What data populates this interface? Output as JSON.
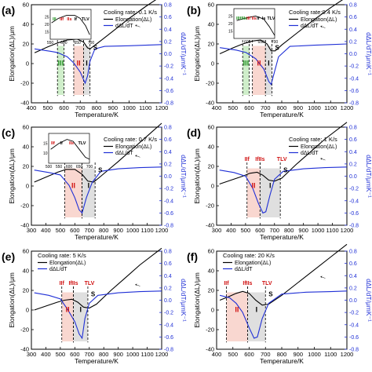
{
  "figure": {
    "ylabel_left": "Elongation(ΔL)/μm",
    "ylabel_right": "dΔL/dT/μmK⁻¹",
    "xlabel": "Temperature/K",
    "arrow_glyph": "→"
  },
  "colors": {
    "elongation": "#000000",
    "derivative": "#1f2fd6",
    "right_axis": "#1f2fd6",
    "zone_green": "#bfe8b8",
    "zone_red": "#f7c9c0",
    "zone_gray": "#d4d4d4",
    "label_red": "#d01010",
    "label_green": "#1f8f1f"
  },
  "chart_data": [
    {
      "panel": "(a)",
      "type": "line",
      "cooling_rate": "Cooling rate: 0.1 K/s",
      "legend": [
        "Elongation(ΔL)",
        "dΔL/dT"
      ],
      "xlim": [
        400,
        1200
      ],
      "xticks": [
        400,
        500,
        600,
        700,
        800,
        900,
        1000,
        1100,
        1200
      ],
      "ylim_left": [
        -40,
        60
      ],
      "yticks_left": [
        -40,
        -20,
        0,
        20,
        40,
        60
      ],
      "ylim_right": [
        -0.8,
        0.8
      ],
      "yticks_right": [
        -0.8,
        -0.6,
        -0.4,
        -0.2,
        0.0,
        0.2,
        0.4,
        0.6,
        0.8
      ],
      "zones": [
        {
          "label": "III",
          "x": [
            560,
            600
          ],
          "color": "green"
        },
        {
          "label": "II",
          "x": [
            660,
            720
          ],
          "color": "red"
        },
        {
          "label": "I",
          "x": [
            720,
            760
          ],
          "color": "gray"
        }
      ],
      "labels": [
        "III",
        "II",
        "I",
        "S"
      ],
      "series": [
        {
          "name": "Elongation(ΔL)",
          "axis": "left",
          "x": [
            420,
            500,
            560,
            620,
            680,
            720,
            745,
            760,
            800,
            900,
            1000,
            1100,
            1200
          ],
          "y": [
            11,
            17,
            21,
            24,
            25,
            22,
            16,
            15,
            20,
            33,
            46,
            58,
            69
          ]
        },
        {
          "name": "dΔL/dT",
          "axis": "right",
          "x": [
            420,
            520,
            560,
            620,
            660,
            700,
            730,
            745,
            760,
            790,
            850,
            1000,
            1100,
            1200
          ],
          "y": [
            0.08,
            0.04,
            0.02,
            -0.05,
            -0.15,
            -0.3,
            -0.48,
            -0.36,
            -0.12,
            0.08,
            0.12,
            0.13,
            0.14,
            0.15
          ]
        }
      ],
      "inset": {
        "xlim": [
          550,
          700
        ],
        "xticks": [
          550,
          600,
          650,
          700
        ],
        "ylim": [
          10,
          30
        ],
        "yticks": [
          15,
          20,
          25
        ],
        "labels": [
          "III",
          "IIf",
          "IIs",
          "If",
          "TLV"
        ],
        "x": [
          555,
          580,
          610,
          640,
          660,
          680,
          695
        ],
        "y": [
          21,
          24,
          26,
          26,
          24,
          19,
          13
        ]
      }
    },
    {
      "panel": "(b)",
      "type": "line",
      "cooling_rate": "Cooling rate:0.4 K/s",
      "legend": [
        "Elongation(ΔL)",
        "dΔL/dT"
      ],
      "xlim": [
        400,
        1200
      ],
      "xticks": [
        400,
        500,
        600,
        700,
        800,
        900,
        1000,
        1100,
        1200
      ],
      "ylim_left": [
        -40,
        60
      ],
      "yticks_left": [
        -40,
        -20,
        0,
        20,
        40,
        60
      ],
      "ylim_right": [
        -0.8,
        0.8
      ],
      "yticks_right": [
        -0.8,
        -0.6,
        -0.4,
        -0.2,
        0.0,
        0.2,
        0.4,
        0.6,
        0.8
      ],
      "zones": [
        {
          "label": "III",
          "x": [
            560,
            600
          ],
          "color": "green"
        },
        {
          "label": "II",
          "x": [
            620,
            700
          ],
          "color": "red"
        },
        {
          "label": "I",
          "x": [
            700,
            740
          ],
          "color": "gray"
        }
      ],
      "labels": [
        "III",
        "II",
        "I",
        "S"
      ],
      "series": [
        {
          "name": "Elongation(ΔL)",
          "axis": "left",
          "x": [
            420,
            500,
            560,
            620,
            670,
            710,
            735,
            760,
            800,
            900,
            1000,
            1100,
            1200
          ],
          "y": [
            10,
            16,
            20,
            23,
            24,
            20,
            13,
            13,
            19,
            32,
            45,
            57,
            68
          ]
        },
        {
          "name": "dΔL/dT",
          "axis": "right",
          "x": [
            420,
            520,
            580,
            640,
            690,
            720,
            735,
            750,
            780,
            850,
            1000,
            1100,
            1200
          ],
          "y": [
            0.1,
            0.06,
            0.02,
            -0.08,
            -0.25,
            -0.45,
            -0.5,
            -0.35,
            -0.05,
            0.12,
            0.14,
            0.15,
            0.16
          ]
        }
      ],
      "inset": {
        "xlim": [
          550,
          700
        ],
        "xticks": [
          600,
          650,
          700
        ],
        "ylim": [
          10,
          30
        ],
        "yticks": [
          15,
          20,
          25
        ],
        "labels": [
          "IIIf",
          "IIIs",
          "IIf",
          "IIs",
          "If",
          "Is",
          "TLV"
        ],
        "x": [
          560,
          600,
          630,
          660,
          680,
          700
        ],
        "y": [
          22,
          24,
          25,
          23,
          18,
          12
        ]
      }
    },
    {
      "panel": "(c)",
      "type": "line",
      "cooling_rate": "Cooling rate: 0.7 K/s",
      "legend": [
        "Elongation(ΔL)",
        "dΔL/dT"
      ],
      "xlim": [
        300,
        1200
      ],
      "xticks": [
        300,
        400,
        500,
        600,
        700,
        800,
        900,
        1000,
        1100,
        1200
      ],
      "ylim_left": [
        -40,
        60
      ],
      "yticks_left": [
        -40,
        -20,
        0,
        20,
        40,
        60
      ],
      "ylim_right": [
        -0.8,
        0.8
      ],
      "yticks_right": [
        -0.8,
        -0.6,
        -0.4,
        -0.2,
        0.0,
        0.2,
        0.4,
        0.6,
        0.8
      ],
      "zones": [
        {
          "label": "II",
          "x": [
            530,
            650
          ],
          "color": "red"
        },
        {
          "label": "I",
          "x": [
            650,
            740
          ],
          "color": "gray"
        }
      ],
      "labels": [
        "II",
        "I",
        "S"
      ],
      "series": [
        {
          "name": "Elongation(ΔL)",
          "axis": "left",
          "x": [
            320,
            400,
            480,
            540,
            600,
            650,
            690,
            730,
            780,
            900,
            1000,
            1100,
            1200
          ],
          "y": [
            4,
            9,
            14,
            17,
            17,
            12,
            5,
            4,
            10,
            25,
            38,
            51,
            64
          ]
        },
        {
          "name": "dΔL/dT",
          "axis": "right",
          "x": [
            320,
            420,
            500,
            560,
            600,
            630,
            650,
            680,
            720,
            780,
            900,
            1050,
            1200
          ],
          "y": [
            0.1,
            0.06,
            0.02,
            -0.15,
            -0.35,
            -0.55,
            -0.6,
            -0.35,
            -0.1,
            0.08,
            0.12,
            0.14,
            0.15
          ]
        }
      ],
      "inset": {
        "xlim": [
          500,
          700
        ],
        "xticks": [
          500,
          550,
          600,
          650,
          700
        ],
        "ylim": [
          5,
          20
        ],
        "yticks": [
          10,
          15
        ],
        "labels": [
          "IIf",
          "If",
          "IIs",
          "TLV"
        ],
        "x": [
          510,
          550,
          590,
          620,
          650,
          680,
          700
        ],
        "y": [
          12,
          15,
          17,
          16,
          12,
          8,
          7
        ]
      }
    },
    {
      "panel": "(d)",
      "type": "line",
      "cooling_rate": "Cooling rate: 1 K/s",
      "legend": [
        "Elongation(ΔL)",
        "dΔL/dT"
      ],
      "xlim": [
        300,
        1200
      ],
      "xticks": [
        300,
        400,
        500,
        600,
        700,
        800,
        900,
        1000,
        1100,
        1200
      ],
      "ylim_left": [
        -40,
        60
      ],
      "yticks_left": [
        -40,
        -20,
        0,
        20,
        40,
        60
      ],
      "ylim_right": [
        -0.8,
        0.8
      ],
      "yticks_right": [
        -0.8,
        -0.6,
        -0.4,
        -0.2,
        0.0,
        0.2,
        0.4,
        0.6,
        0.8
      ],
      "zones": [
        {
          "label": "II",
          "x": [
            510,
            600
          ],
          "color": "red"
        },
        {
          "label": "I",
          "x": [
            600,
            740
          ],
          "color": "gray"
        }
      ],
      "labels": [
        "IIf",
        "IfIIs",
        "TLV",
        "II",
        "I",
        "S"
      ],
      "series": [
        {
          "name": "Elongation(ΔL)",
          "axis": "left",
          "x": [
            320,
            400,
            480,
            530,
            580,
            620,
            660,
            700,
            750,
            850,
            950,
            1050,
            1200
          ],
          "y": [
            2,
            6,
            10,
            13,
            14,
            11,
            6,
            5,
            8,
            22,
            35,
            48,
            65
          ]
        },
        {
          "name": "dΔL/dT",
          "axis": "right",
          "x": [
            320,
            420,
            500,
            550,
            590,
            620,
            640,
            670,
            700,
            760,
            900,
            1050,
            1200
          ],
          "y": [
            0.1,
            0.06,
            0.0,
            -0.2,
            -0.45,
            -0.6,
            -0.58,
            -0.3,
            -0.05,
            0.08,
            0.12,
            0.14,
            0.15
          ]
        }
      ]
    },
    {
      "panel": "(e)",
      "type": "line",
      "cooling_rate": "Cooling rate: 5 K/s",
      "legend": [
        "Elongation(ΔL)",
        "dΔL/dT"
      ],
      "xlim": [
        300,
        1200
      ],
      "xticks": [
        300,
        400,
        500,
        600,
        700,
        800,
        900,
        1000,
        1100,
        1200
      ],
      "ylim_left": [
        -40,
        60
      ],
      "yticks_left": [
        -40,
        -20,
        0,
        20,
        40,
        60
      ],
      "ylim_right": [
        -0.8,
        0.8
      ],
      "yticks_right": [
        -0.8,
        -0.6,
        -0.4,
        -0.2,
        0.0,
        0.2,
        0.4,
        0.6,
        0.8
      ],
      "zones": [
        {
          "label": "II",
          "x": [
            510,
            590
          ],
          "color": "red"
        },
        {
          "label": "I",
          "x": [
            590,
            690
          ],
          "color": "gray"
        }
      ],
      "labels": [
        "IIf",
        "IfIIs",
        "TLV",
        "II",
        "I",
        "S"
      ],
      "series": [
        {
          "name": "Elongation(ΔL)",
          "axis": "left",
          "x": [
            320,
            400,
            480,
            530,
            580,
            620,
            660,
            700,
            750,
            850,
            950,
            1050,
            1200
          ],
          "y": [
            0,
            4,
            8,
            10,
            11,
            8,
            3,
            2,
            6,
            20,
            33,
            46,
            63
          ]
        },
        {
          "name": "dΔL/dT",
          "axis": "right",
          "x": [
            320,
            420,
            500,
            550,
            600,
            630,
            650,
            670,
            700,
            760,
            900,
            1050,
            1200
          ],
          "y": [
            0.12,
            0.08,
            0.02,
            -0.15,
            -0.35,
            -0.55,
            -0.62,
            -0.3,
            -0.05,
            0.08,
            0.12,
            0.14,
            0.15
          ]
        }
      ]
    },
    {
      "panel": "(f)",
      "type": "line",
      "cooling_rate": "Cooling rate: 20 K/s",
      "legend": [
        "Elongation(ΔL)",
        "dΔL/dT"
      ],
      "xlim": [
        400,
        1200
      ],
      "xticks": [
        400,
        500,
        600,
        700,
        800,
        900,
        1000,
        1100,
        1200
      ],
      "ylim_left": [
        -40,
        60
      ],
      "yticks_left": [
        -40,
        -20,
        0,
        20,
        40,
        60
      ],
      "ylim_right": [
        -0.8,
        0.8
      ],
      "yticks_right": [
        -0.8,
        -0.6,
        -0.4,
        -0.2,
        0.0,
        0.2,
        0.4,
        0.6,
        0.8
      ],
      "zones": [
        {
          "label": "II",
          "x": [
            460,
            590
          ],
          "color": "red"
        },
        {
          "label": "I",
          "x": [
            590,
            700
          ],
          "color": "gray"
        }
      ],
      "labels": [
        "IIf",
        "IfIIs",
        "TLV",
        "II",
        "I",
        "S"
      ],
      "series": [
        {
          "name": "Elongation(ΔL)",
          "axis": "left",
          "x": [
            420,
            480,
            520,
            560,
            600,
            640,
            680,
            720,
            800,
            900,
            1000,
            1100,
            1200
          ],
          "y": [
            10,
            14,
            17,
            19,
            17,
            10,
            5,
            6,
            15,
            28,
            41,
            54,
            67
          ]
        },
        {
          "name": "dΔL/dT",
          "axis": "right",
          "x": [
            420,
            480,
            520,
            560,
            600,
            630,
            650,
            680,
            720,
            800,
            950,
            1100,
            1200
          ],
          "y": [
            0.08,
            0.04,
            -0.05,
            -0.2,
            -0.45,
            -0.62,
            -0.6,
            -0.3,
            -0.05,
            0.1,
            0.13,
            0.14,
            0.15
          ]
        }
      ]
    }
  ]
}
